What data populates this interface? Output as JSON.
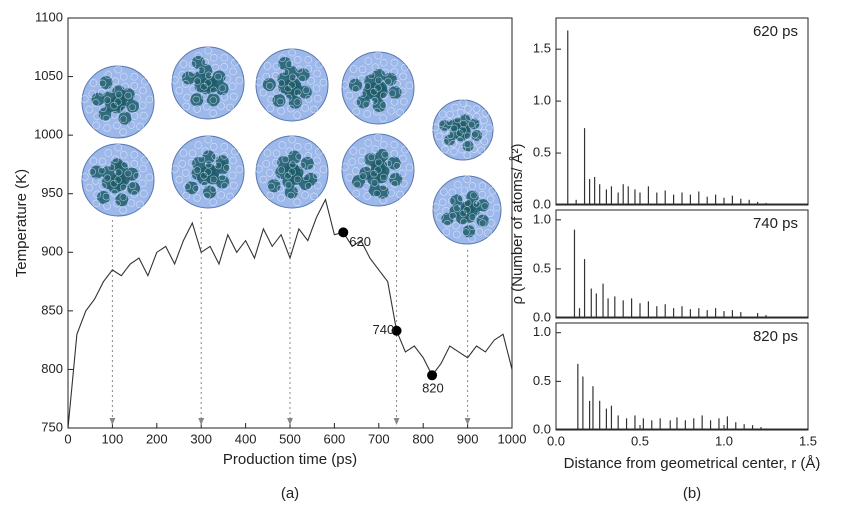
{
  "chart_data": [
    {
      "type": "line",
      "xlabel": "Production time (ps)",
      "ylabel": "Temperature (K)",
      "caption": "(a)",
      "color": "#333333",
      "x": [
        0,
        20,
        40,
        60,
        80,
        100,
        120,
        140,
        160,
        180,
        200,
        220,
        240,
        260,
        280,
        300,
        320,
        340,
        360,
        380,
        400,
        420,
        440,
        460,
        480,
        500,
        520,
        540,
        560,
        580,
        600,
        620,
        640,
        660,
        680,
        700,
        720,
        740,
        760,
        780,
        800,
        820,
        840,
        860,
        880,
        900,
        920,
        940,
        960,
        980,
        1000
      ],
      "values": [
        750,
        830,
        850,
        860,
        875,
        885,
        880,
        890,
        895,
        880,
        900,
        905,
        890,
        910,
        925,
        900,
        905,
        890,
        915,
        900,
        910,
        895,
        920,
        905,
        915,
        895,
        920,
        910,
        930,
        945,
        915,
        917,
        905,
        910,
        895,
        885,
        875,
        833,
        815,
        820,
        810,
        795,
        805,
        820,
        815,
        810,
        820,
        815,
        825,
        830,
        800
      ],
      "xlim": [
        0,
        1000
      ],
      "xticks": [
        0,
        100,
        200,
        300,
        400,
        500,
        600,
        700,
        800,
        900,
        1000
      ],
      "ylim": [
        750,
        1100
      ],
      "yticks": [
        750,
        800,
        850,
        900,
        950,
        1000,
        1050,
        1100
      ],
      "arrows_x": [
        100,
        300,
        500,
        740,
        900
      ],
      "annotations": [
        {
          "x": 620,
          "y": 917,
          "label": "620"
        },
        {
          "x": 740,
          "y": 833,
          "label": "740"
        },
        {
          "x": 820,
          "y": 795,
          "label": "820"
        }
      ]
    },
    {
      "type": "spike",
      "label": "620 ps",
      "color": "#333333",
      "ylabel": "ρ (Number of atoms/ Å²)",
      "x": [
        0.07,
        0.12,
        0.17,
        0.2,
        0.23,
        0.26,
        0.3,
        0.33,
        0.37,
        0.4,
        0.43,
        0.47,
        0.5,
        0.55,
        0.6,
        0.65,
        0.7,
        0.75,
        0.8,
        0.85,
        0.9,
        0.95,
        1.0,
        1.05,
        1.1,
        1.15,
        1.2,
        1.25
      ],
      "values": [
        1.68,
        0.05,
        0.74,
        0.25,
        0.27,
        0.2,
        0.15,
        0.18,
        0.12,
        0.2,
        0.18,
        0.15,
        0.12,
        0.18,
        0.12,
        0.14,
        0.1,
        0.12,
        0.1,
        0.13,
        0.08,
        0.1,
        0.07,
        0.09,
        0.06,
        0.05,
        0.03,
        0.02
      ],
      "xlim": [
        0,
        1.5
      ],
      "ylim": [
        0,
        1.8
      ],
      "yticks": [
        {
          "value": 0,
          "label": "0.0"
        },
        {
          "value": 0.5,
          "label": "0.5"
        },
        {
          "value": 1,
          "label": "1.0"
        },
        {
          "value": 1.5,
          "label": "1.5"
        }
      ]
    },
    {
      "type": "spike",
      "label": "740 ps",
      "color": "#333333",
      "x": [
        0.11,
        0.14,
        0.17,
        0.21,
        0.24,
        0.28,
        0.31,
        0.35,
        0.4,
        0.45,
        0.5,
        0.55,
        0.6,
        0.65,
        0.7,
        0.75,
        0.8,
        0.85,
        0.9,
        0.95,
        1.0,
        1.05,
        1.1,
        1.2,
        1.25
      ],
      "values": [
        0.9,
        0.1,
        0.6,
        0.3,
        0.25,
        0.35,
        0.2,
        0.22,
        0.18,
        0.2,
        0.15,
        0.17,
        0.12,
        0.14,
        0.1,
        0.12,
        0.09,
        0.1,
        0.08,
        0.1,
        0.07,
        0.08,
        0.06,
        0.05,
        0.03
      ],
      "xlim": [
        0,
        1.5
      ],
      "ylim": [
        0,
        1.1
      ],
      "yticks": [
        {
          "value": 0,
          "label": "0.0"
        },
        {
          "value": 0.5,
          "label": "0.5"
        },
        {
          "value": 1,
          "label": "1.0"
        }
      ]
    },
    {
      "type": "spike",
      "label": "820 ps",
      "color": "#333333",
      "xlabel": "Distance from geometrical center, r (Å)",
      "caption": "(b)",
      "x": [
        0.13,
        0.16,
        0.2,
        0.22,
        0.26,
        0.3,
        0.33,
        0.37,
        0.42,
        0.47,
        0.52,
        0.57,
        0.62,
        0.68,
        0.72,
        0.77,
        0.82,
        0.87,
        0.92,
        0.97,
        1.02,
        1.07,
        1.12,
        1.17,
        1.22
      ],
      "values": [
        0.68,
        0.55,
        0.3,
        0.45,
        0.3,
        0.22,
        0.25,
        0.15,
        0.12,
        0.15,
        0.12,
        0.1,
        0.12,
        0.1,
        0.13,
        0.1,
        0.12,
        0.15,
        0.1,
        0.12,
        0.14,
        0.08,
        0.06,
        0.05,
        0.03
      ],
      "xlim": [
        0,
        1.5
      ],
      "ylim": [
        0,
        1.1
      ],
      "yticks": [
        {
          "value": 0,
          "label": "0.0"
        },
        {
          "value": 0.5,
          "label": "0.5"
        },
        {
          "value": 1,
          "label": "1.0"
        }
      ],
      "xticks": [
        {
          "value": 0,
          "label": "0.0"
        },
        {
          "value": 0.5,
          "label": "0.5"
        },
        {
          "value": 1,
          "label": "1.0"
        },
        {
          "value": 1.5,
          "label": "1.5"
        }
      ]
    }
  ]
}
